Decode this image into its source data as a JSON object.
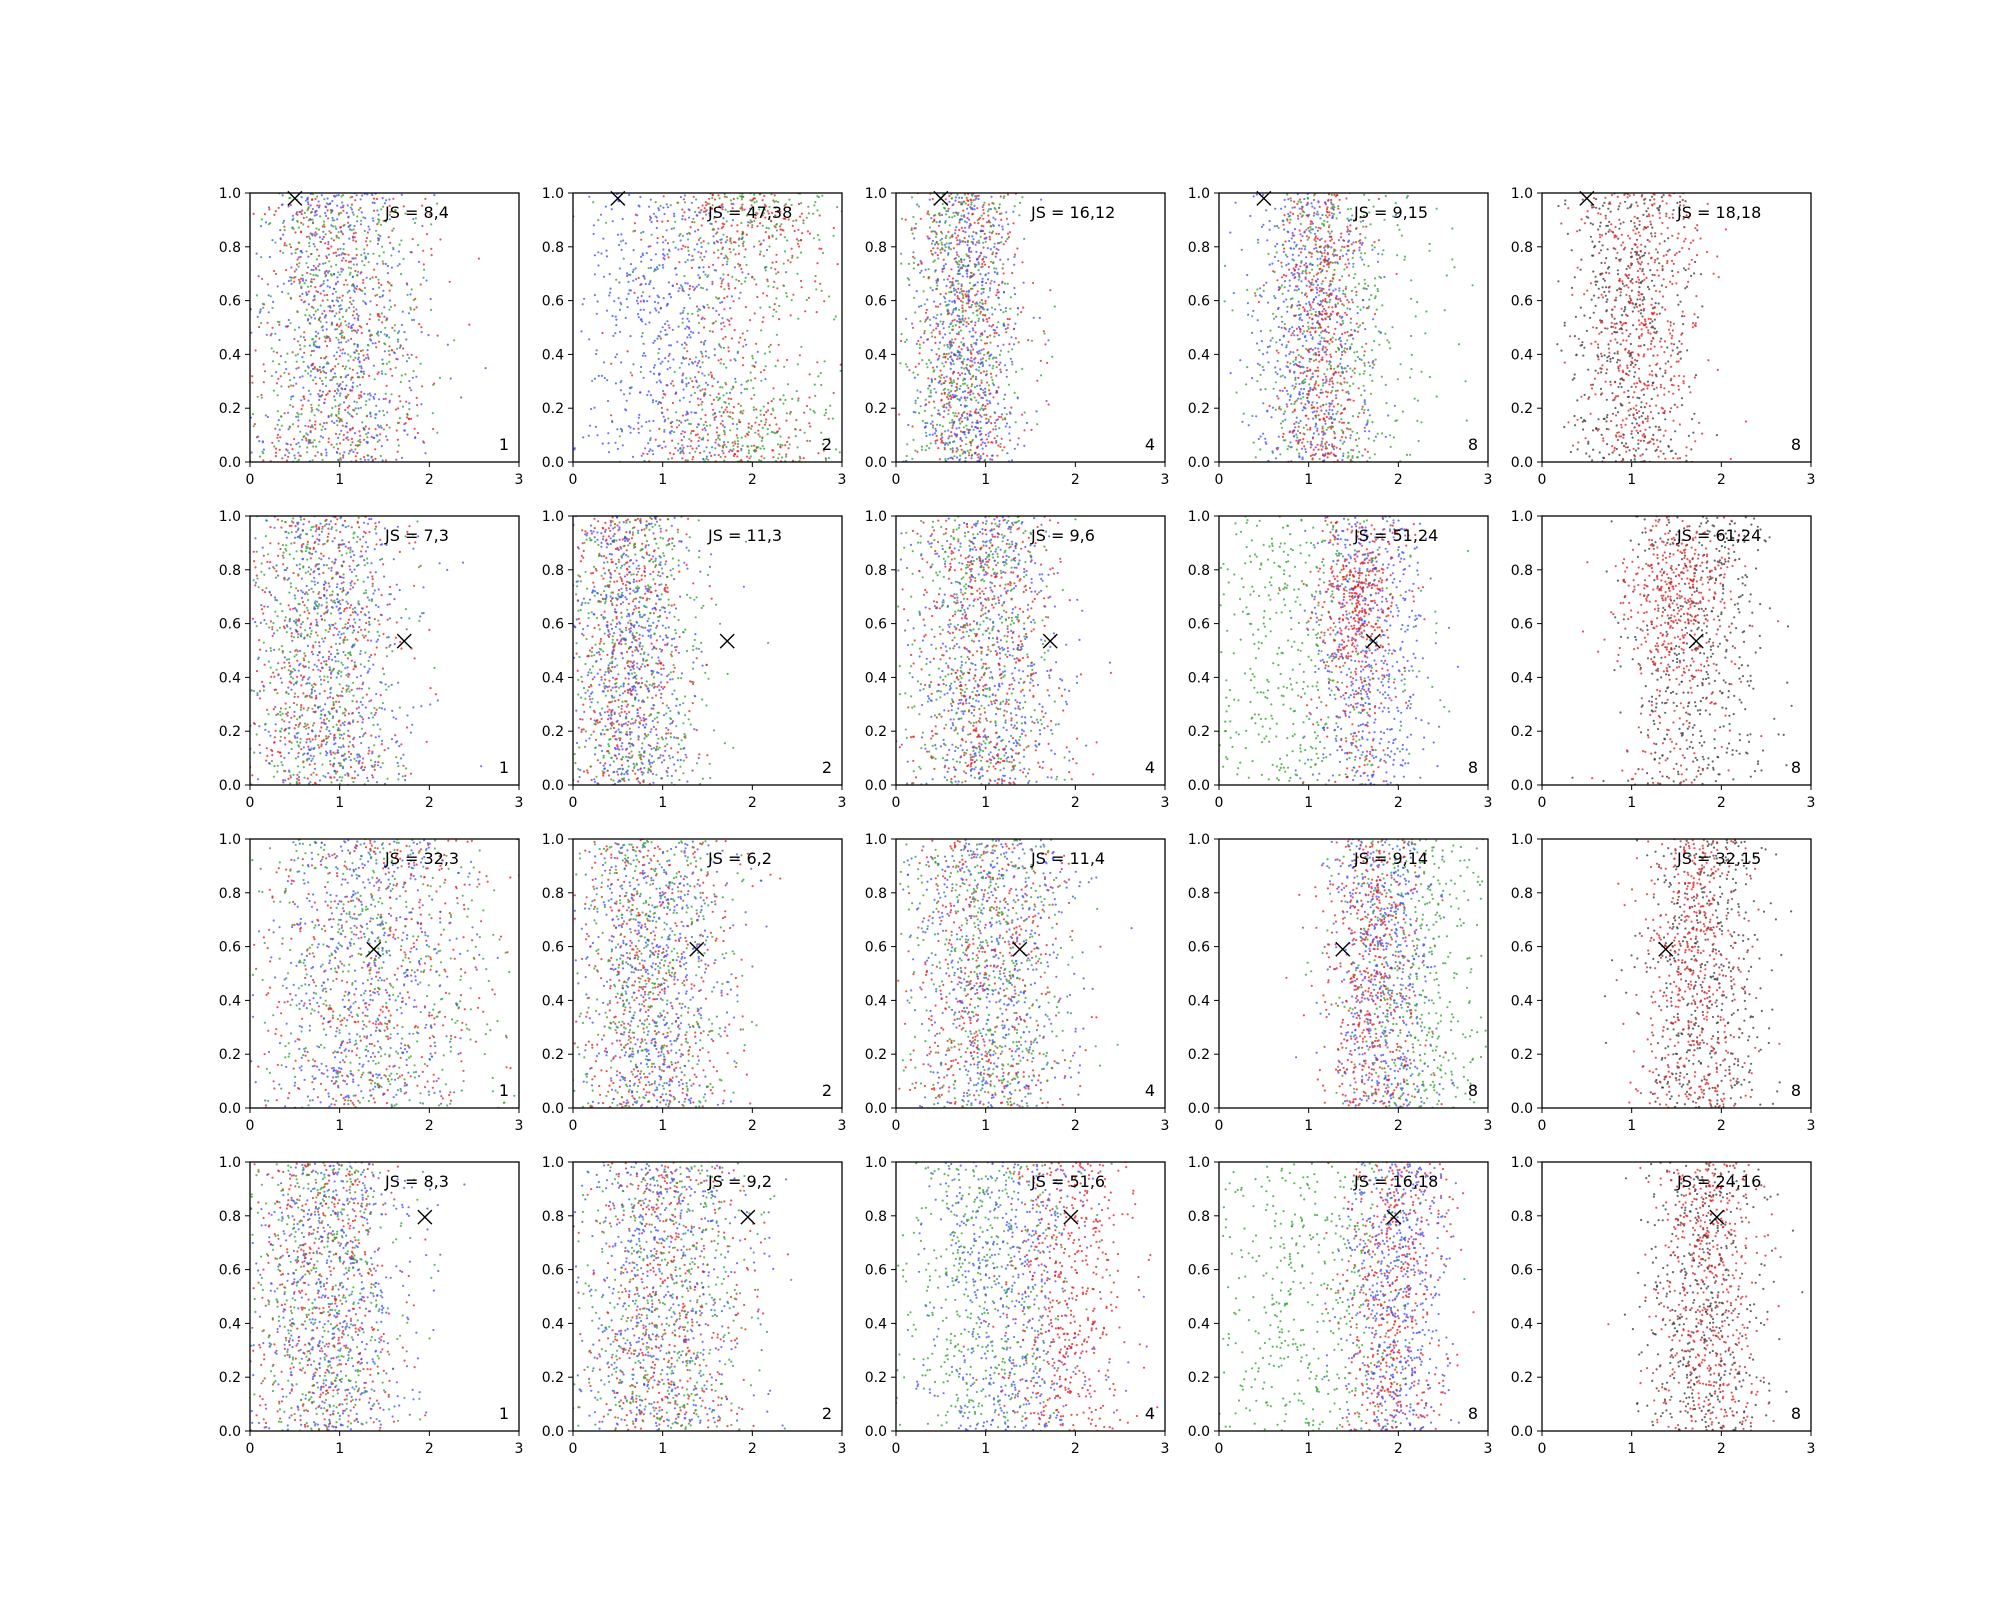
{
  "figure": {
    "x_ticks": [
      "0",
      "1",
      "2",
      "3"
    ],
    "y_ticks": [
      "0.0",
      "0.2",
      "0.4",
      "0.6",
      "0.8",
      "1.0"
    ],
    "colors": {
      "red": "#e41a1c",
      "green": "#2ca02c",
      "blue": "#3b4cff",
      "black": "#333333",
      "marker": "#000000"
    }
  },
  "chart_data": [
    {
      "type": "scatter",
      "row": 1,
      "col": 1,
      "js_label": "JS = 8,4",
      "corner_label": "1",
      "marker": [
        0.5,
        0.98
      ],
      "xlim": [
        0,
        3
      ],
      "ylim": [
        0,
        1
      ],
      "series": [
        {
          "color": "red",
          "x_center": 1.0,
          "x_spread": 0.5
        },
        {
          "color": "green",
          "x_center": 1.0,
          "x_spread": 0.5
        },
        {
          "color": "blue",
          "x_center": 1.0,
          "x_spread": 0.5
        }
      ]
    },
    {
      "type": "scatter",
      "row": 1,
      "col": 2,
      "js_label": "JS = 47,38",
      "corner_label": "2",
      "marker": [
        0.5,
        0.98
      ],
      "xlim": [
        0,
        3
      ],
      "ylim": [
        0,
        1
      ],
      "series": [
        {
          "color": "red",
          "x_center": 1.8,
          "x_spread": 0.5,
          "y_mode": "edges"
        },
        {
          "color": "green",
          "x_center": 1.9,
          "x_spread": 0.6,
          "y_mode": "edges"
        },
        {
          "color": "blue",
          "x_center": 1.0,
          "x_spread": 0.5
        }
      ]
    },
    {
      "type": "scatter",
      "row": 1,
      "col": 3,
      "js_label": "JS = 16,12",
      "corner_label": "4",
      "marker": [
        0.5,
        0.98
      ],
      "xlim": [
        0,
        3
      ],
      "ylim": [
        0,
        1
      ],
      "series": [
        {
          "color": "red",
          "x_center": 0.8,
          "x_spread": 0.3
        },
        {
          "color": "green",
          "x_center": 0.7,
          "x_spread": 0.35
        },
        {
          "color": "blue",
          "x_center": 0.8,
          "x_spread": 0.3
        }
      ]
    },
    {
      "type": "scatter",
      "row": 1,
      "col": 4,
      "js_label": "JS = 9,15",
      "corner_label": "8",
      "marker": [
        0.5,
        0.98
      ],
      "xlim": [
        0,
        3
      ],
      "ylim": [
        0,
        1
      ],
      "series": [
        {
          "color": "green",
          "x_center": 1.3,
          "x_spread": 0.5
        },
        {
          "color": "blue",
          "x_center": 1.0,
          "x_spread": 0.35
        },
        {
          "color": "red",
          "x_center": 1.15,
          "x_spread": 0.25
        }
      ]
    },
    {
      "type": "scatter",
      "row": 1,
      "col": 5,
      "js_label": "JS = 18,18",
      "corner_label": "8",
      "marker": [
        0.5,
        0.98
      ],
      "xlim": [
        0,
        3
      ],
      "ylim": [
        0,
        1
      ],
      "series": [
        {
          "color": "black",
          "x_center": 1.0,
          "x_spread": 0.35
        },
        {
          "color": "red",
          "x_center": 1.1,
          "x_spread": 0.35
        }
      ]
    },
    {
      "type": "scatter",
      "row": 2,
      "col": 1,
      "js_label": "JS = 7,3",
      "corner_label": "1",
      "marker": [
        1.72,
        0.535
      ],
      "xlim": [
        0,
        3
      ],
      "ylim": [
        0,
        1
      ],
      "series": [
        {
          "color": "red",
          "x_center": 0.8,
          "x_spread": 0.45
        },
        {
          "color": "green",
          "x_center": 0.8,
          "x_spread": 0.45
        },
        {
          "color": "blue",
          "x_center": 0.9,
          "x_spread": 0.5
        }
      ]
    },
    {
      "type": "scatter",
      "row": 2,
      "col": 2,
      "js_label": "JS = 11,3",
      "corner_label": "2",
      "marker": [
        1.72,
        0.535
      ],
      "xlim": [
        0,
        3
      ],
      "ylim": [
        0,
        1
      ],
      "series": [
        {
          "color": "red",
          "x_center": 0.6,
          "x_spread": 0.35
        },
        {
          "color": "green",
          "x_center": 0.7,
          "x_spread": 0.4
        },
        {
          "color": "blue",
          "x_center": 0.6,
          "x_spread": 0.35
        }
      ]
    },
    {
      "type": "scatter",
      "row": 2,
      "col": 3,
      "js_label": "JS = 9,6",
      "corner_label": "4",
      "marker": [
        1.72,
        0.535
      ],
      "xlim": [
        0,
        3
      ],
      "ylim": [
        0,
        1
      ],
      "series": [
        {
          "color": "green",
          "x_center": 0.9,
          "x_spread": 0.4
        },
        {
          "color": "blue",
          "x_center": 1.0,
          "x_spread": 0.45
        },
        {
          "color": "red",
          "x_center": 1.0,
          "x_spread": 0.4
        }
      ]
    },
    {
      "type": "scatter",
      "row": 2,
      "col": 4,
      "js_label": "JS = 51,24",
      "corner_label": "8",
      "marker": [
        1.72,
        0.535
      ],
      "xlim": [
        0,
        3
      ],
      "ylim": [
        0,
        1
      ],
      "series": [
        {
          "color": "green",
          "x_center": 0.9,
          "x_spread": 0.6
        },
        {
          "color": "blue",
          "x_center": 1.7,
          "x_spread": 0.3
        },
        {
          "color": "red",
          "x_center": 1.55,
          "x_spread": 0.25,
          "y_center": 0.7
        }
      ]
    },
    {
      "type": "scatter",
      "row": 2,
      "col": 5,
      "js_label": "JS = 61,24",
      "corner_label": "8",
      "marker": [
        1.72,
        0.535
      ],
      "xlim": [
        0,
        3
      ],
      "ylim": [
        0,
        1
      ],
      "series": [
        {
          "color": "black",
          "x_center": 1.7,
          "x_spread": 0.4
        },
        {
          "color": "red",
          "x_center": 1.5,
          "x_spread": 0.3,
          "y_center": 0.7
        }
      ]
    },
    {
      "type": "scatter",
      "row": 3,
      "col": 1,
      "js_label": "JS = 32,3",
      "corner_label": "1",
      "marker": [
        1.38,
        0.59
      ],
      "xlim": [
        0,
        3
      ],
      "ylim": [
        0,
        1
      ],
      "series": [
        {
          "color": "red",
          "x_center": 1.4,
          "x_spread": 0.7
        },
        {
          "color": "green",
          "x_center": 1.4,
          "x_spread": 0.7
        },
        {
          "color": "blue",
          "x_center": 1.2,
          "x_spread": 0.6
        }
      ]
    },
    {
      "type": "scatter",
      "row": 3,
      "col": 2,
      "js_label": "JS = 6,2",
      "corner_label": "2",
      "marker": [
        1.38,
        0.59
      ],
      "xlim": [
        0,
        3
      ],
      "ylim": [
        0,
        1
      ],
      "series": [
        {
          "color": "red",
          "x_center": 0.9,
          "x_spread": 0.45
        },
        {
          "color": "green",
          "x_center": 0.9,
          "x_spread": 0.45
        },
        {
          "color": "blue",
          "x_center": 0.9,
          "x_spread": 0.45
        }
      ]
    },
    {
      "type": "scatter",
      "row": 3,
      "col": 3,
      "js_label": "JS = 11,4",
      "corner_label": "4",
      "marker": [
        1.38,
        0.59
      ],
      "xlim": [
        0,
        3
      ],
      "ylim": [
        0,
        1
      ],
      "series": [
        {
          "color": "red",
          "x_center": 1.0,
          "x_spread": 0.45
        },
        {
          "color": "green",
          "x_center": 1.0,
          "x_spread": 0.45
        },
        {
          "color": "blue",
          "x_center": 1.1,
          "x_spread": 0.5
        }
      ]
    },
    {
      "type": "scatter",
      "row": 3,
      "col": 4,
      "js_label": "JS = 9,14",
      "corner_label": "8",
      "marker": [
        1.38,
        0.59
      ],
      "xlim": [
        0,
        3
      ],
      "ylim": [
        0,
        1
      ],
      "series": [
        {
          "color": "green",
          "x_center": 2.2,
          "x_spread": 0.45
        },
        {
          "color": "blue",
          "x_center": 1.8,
          "x_spread": 0.3
        },
        {
          "color": "red",
          "x_center": 1.7,
          "x_spread": 0.25
        }
      ]
    },
    {
      "type": "scatter",
      "row": 3,
      "col": 5,
      "js_label": "JS = 32,15",
      "corner_label": "8",
      "marker": [
        1.38,
        0.59
      ],
      "xlim": [
        0,
        3
      ],
      "ylim": [
        0,
        1
      ],
      "series": [
        {
          "color": "black",
          "x_center": 1.8,
          "x_spread": 0.35
        },
        {
          "color": "red",
          "x_center": 1.7,
          "x_spread": 0.3
        }
      ]
    },
    {
      "type": "scatter",
      "row": 4,
      "col": 1,
      "js_label": "JS = 8,3",
      "corner_label": "1",
      "marker": [
        1.95,
        0.795
      ],
      "xlim": [
        0,
        3
      ],
      "ylim": [
        0,
        1
      ],
      "series": [
        {
          "color": "red",
          "x_center": 0.8,
          "x_spread": 0.45
        },
        {
          "color": "green",
          "x_center": 0.8,
          "x_spread": 0.45
        },
        {
          "color": "blue",
          "x_center": 0.9,
          "x_spread": 0.45
        }
      ]
    },
    {
      "type": "scatter",
      "row": 4,
      "col": 2,
      "js_label": "JS = 9,2",
      "corner_label": "2",
      "marker": [
        1.95,
        0.795
      ],
      "xlim": [
        0,
        3
      ],
      "ylim": [
        0,
        1
      ],
      "series": [
        {
          "color": "red",
          "x_center": 1.0,
          "x_spread": 0.5
        },
        {
          "color": "green",
          "x_center": 1.0,
          "x_spread": 0.5
        },
        {
          "color": "blue",
          "x_center": 1.0,
          "x_spread": 0.5
        }
      ]
    },
    {
      "type": "scatter",
      "row": 4,
      "col": 3,
      "js_label": "JS = 51,6",
      "corner_label": "4",
      "marker": [
        1.95,
        0.795
      ],
      "xlim": [
        0,
        3
      ],
      "ylim": [
        0,
        1
      ],
      "series": [
        {
          "color": "green",
          "x_center": 1.0,
          "x_spread": 0.5
        },
        {
          "color": "blue",
          "x_center": 1.3,
          "x_spread": 0.5
        },
        {
          "color": "red",
          "x_center": 1.9,
          "x_spread": 0.35
        }
      ]
    },
    {
      "type": "scatter",
      "row": 4,
      "col": 4,
      "js_label": "JS = 16,18",
      "corner_label": "8",
      "marker": [
        1.95,
        0.795
      ],
      "xlim": [
        0,
        3
      ],
      "ylim": [
        0,
        1
      ],
      "series": [
        {
          "color": "green",
          "x_center": 1.0,
          "x_spread": 0.6
        },
        {
          "color": "red",
          "x_center": 1.95,
          "x_spread": 0.3
        },
        {
          "color": "blue",
          "x_center": 2.0,
          "x_spread": 0.3
        }
      ]
    },
    {
      "type": "scatter",
      "row": 4,
      "col": 5,
      "js_label": "JS = 24,16",
      "corner_label": "8",
      "marker": [
        1.95,
        0.795
      ],
      "xlim": [
        0,
        3
      ],
      "ylim": [
        0,
        1
      ],
      "series": [
        {
          "color": "black",
          "x_center": 1.8,
          "x_spread": 0.35
        },
        {
          "color": "red",
          "x_center": 1.85,
          "x_spread": 0.3
        }
      ]
    }
  ]
}
